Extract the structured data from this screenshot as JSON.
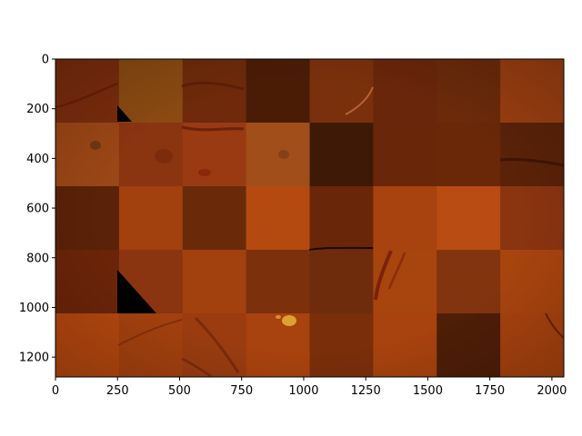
{
  "figure": {
    "x_ticks": [
      {
        "value": 0,
        "label": "0"
      },
      {
        "value": 250,
        "label": "250"
      },
      {
        "value": 500,
        "label": "500"
      },
      {
        "value": 750,
        "label": "750"
      },
      {
        "value": 1000,
        "label": "1000"
      },
      {
        "value": 1250,
        "label": "1250"
      },
      {
        "value": 1500,
        "label": "1500"
      },
      {
        "value": 1750,
        "label": "1750"
      },
      {
        "value": 2000,
        "label": "2000"
      }
    ],
    "y_ticks": [
      {
        "value": 0,
        "label": "0"
      },
      {
        "value": 200,
        "label": "200"
      },
      {
        "value": 400,
        "label": "400"
      },
      {
        "value": 600,
        "label": "600"
      },
      {
        "value": 800,
        "label": "800"
      },
      {
        "value": 1000,
        "label": "1000"
      },
      {
        "value": 1200,
        "label": "1200"
      }
    ],
    "x_range": [
      0,
      2048
    ],
    "y_range": [
      0,
      1280
    ],
    "grid": {
      "rows": 5,
      "cols": 8
    },
    "tile_colors": [
      [
        "#7a2c0c",
        "#8a4a12",
        "#6e2a0a",
        "#4a1c06",
        "#7a300c",
        "#6a260a",
        "#6c2a0a",
        "#9a3e10"
      ],
      [
        "#9a4616",
        "#8a3410",
        "#9a3a12",
        "#a24e1a",
        "#3e1a06",
        "#6a2608",
        "#6a2808",
        "#5a2208"
      ],
      [
        "#5a2208",
        "#a2400e",
        "#6a2a0a",
        "#b44a10",
        "#6a2608",
        "#a8420e",
        "#b84c12",
        "#8a3410"
      ],
      [
        "#6a2408",
        "#8a3410",
        "#a2400e",
        "#7c300c",
        "#6e2c0c",
        "#a8440e",
        "#82340e",
        "#a8440e"
      ],
      [
        "#b2460e",
        "#a2400e",
        "#9a3c10",
        "#a8420e",
        "#7a2e0a",
        "#a8420e",
        "#4e1e06",
        "#a8420e"
      ]
    ]
  }
}
